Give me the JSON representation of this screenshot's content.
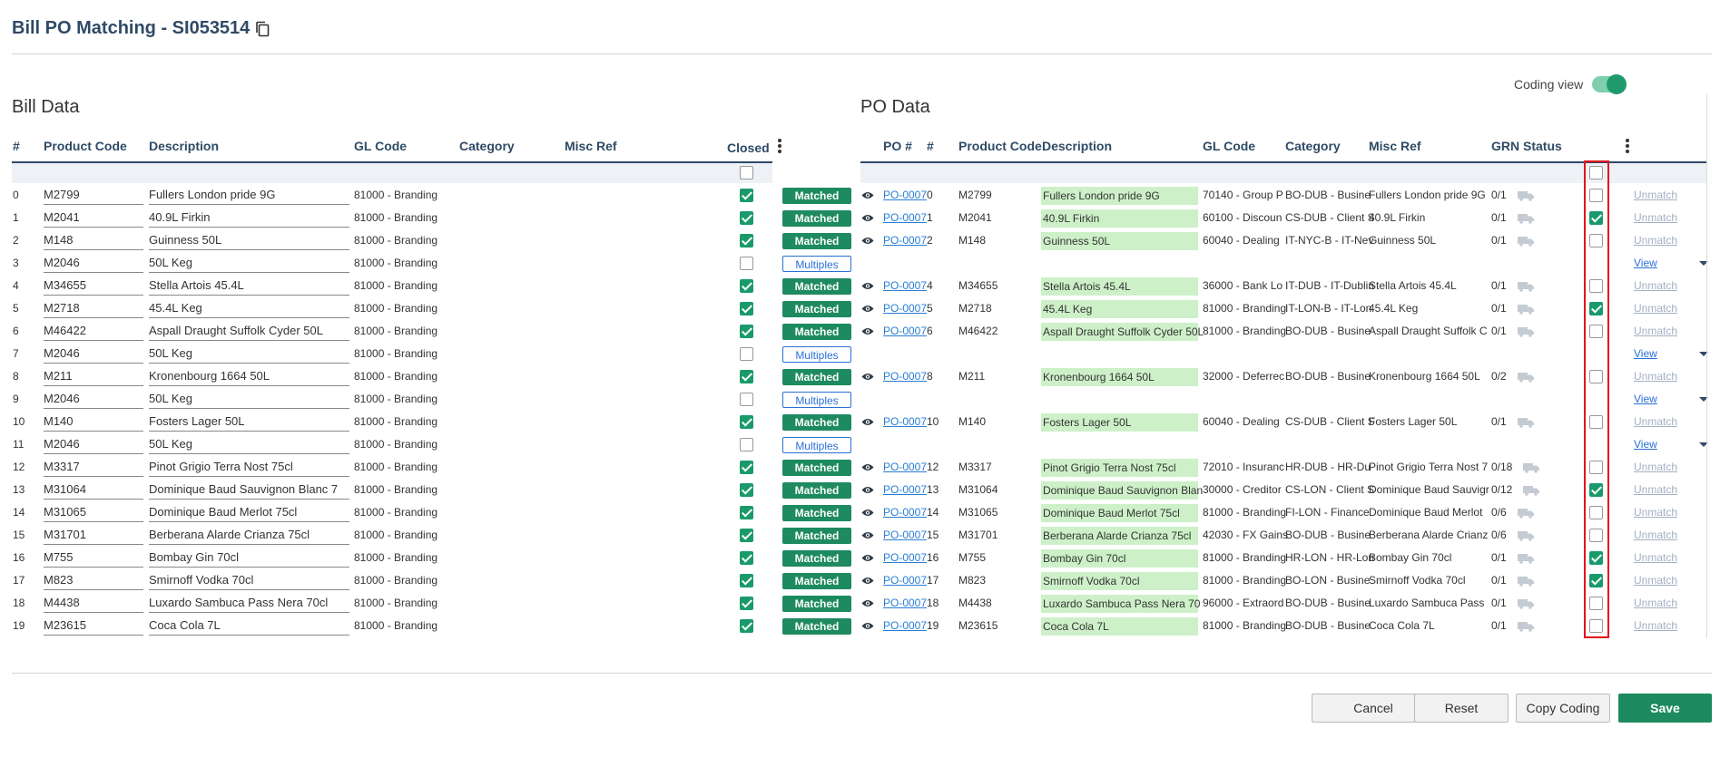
{
  "header": {
    "title": "Bill PO Matching - SI053514"
  },
  "coding_view": {
    "label": "Coding view",
    "enabled": true
  },
  "bill": {
    "section_title": "Bill Data",
    "columns": [
      "#",
      "Product Code",
      "Description",
      "GL Code",
      "Category",
      "Misc Ref",
      "Closed"
    ],
    "rows": [
      {
        "n": "0",
        "code": "M2799",
        "desc": "Fullers London pride 9G",
        "gl": "81000 - Branding",
        "closed": true,
        "status": "Matched"
      },
      {
        "n": "1",
        "code": "M2041",
        "desc": "40.9L Firkin",
        "gl": "81000 - Branding",
        "closed": true,
        "status": "Matched"
      },
      {
        "n": "2",
        "code": "M148",
        "desc": "Guinness  50L",
        "gl": "81000 - Branding",
        "closed": true,
        "status": "Matched"
      },
      {
        "n": "3",
        "code": "M2046",
        "desc": "50L Keg",
        "gl": "81000 - Branding",
        "closed": false,
        "status": "Multiples"
      },
      {
        "n": "4",
        "code": "M34655",
        "desc": "Stella Artois  45.4L",
        "gl": "81000 - Branding",
        "closed": true,
        "status": "Matched"
      },
      {
        "n": "5",
        "code": "M2718",
        "desc": "45.4L Keg",
        "gl": "81000 - Branding",
        "closed": true,
        "status": "Matched"
      },
      {
        "n": "6",
        "code": "M46422",
        "desc": "Aspall Draught Suffolk Cyder 50L",
        "gl": "81000 - Branding",
        "closed": true,
        "status": "Matched"
      },
      {
        "n": "7",
        "code": "M2046",
        "desc": "50L Keg",
        "gl": "81000 - Branding",
        "closed": false,
        "status": "Multiples"
      },
      {
        "n": "8",
        "code": "M211",
        "desc": "Kronenbourg 1664  50L",
        "gl": "81000 - Branding",
        "closed": true,
        "status": "Matched"
      },
      {
        "n": "9",
        "code": "M2046",
        "desc": "50L Keg",
        "gl": "81000 - Branding",
        "closed": false,
        "status": "Multiples"
      },
      {
        "n": "10",
        "code": "M140",
        "desc": "Fosters Lager  50L",
        "gl": "81000 - Branding",
        "closed": true,
        "status": "Matched"
      },
      {
        "n": "11",
        "code": "M2046",
        "desc": "50L Keg",
        "gl": "81000 - Branding",
        "closed": false,
        "status": "Multiples"
      },
      {
        "n": "12",
        "code": "M3317",
        "desc": "Pinot Grigio Terra Nost  75cl",
        "gl": "81000 - Branding",
        "closed": true,
        "status": "Matched"
      },
      {
        "n": "13",
        "code": "M31064",
        "desc": "Dominique Baud Sauvignon Blanc  7",
        "gl": "81000 - Branding",
        "closed": true,
        "status": "Matched"
      },
      {
        "n": "14",
        "code": "M31065",
        "desc": "Dominique Baud Merlot  75cl",
        "gl": "81000 - Branding",
        "closed": true,
        "status": "Matched"
      },
      {
        "n": "15",
        "code": "M31701",
        "desc": "Berberana Alarde Crianza  75cl",
        "gl": "81000 - Branding",
        "closed": true,
        "status": "Matched"
      },
      {
        "n": "16",
        "code": "M755",
        "desc": "Bombay Gin  70cl",
        "gl": "81000 - Branding",
        "closed": true,
        "status": "Matched"
      },
      {
        "n": "17",
        "code": "M823",
        "desc": "Smirnoff Vodka  70cl",
        "gl": "81000 - Branding",
        "closed": true,
        "status": "Matched"
      },
      {
        "n": "18",
        "code": "M4438",
        "desc": "Luxardo Sambuca Pass Nera  70cl",
        "gl": "81000 - Branding",
        "closed": true,
        "status": "Matched"
      },
      {
        "n": "19",
        "code": "M23615",
        "desc": "Coca Cola  7L",
        "gl": "81000 - Branding",
        "closed": true,
        "status": "Matched"
      }
    ]
  },
  "po": {
    "section_title": "PO Data",
    "columns": [
      "PO #",
      "#",
      "Product Code",
      "Description",
      "GL Code",
      "Category",
      "Misc Ref",
      "GRN Status"
    ],
    "unmatch_label": "Unmatch",
    "view_label": "View",
    "rows": [
      {
        "row": 0,
        "po": "PO-0007",
        "n": "0",
        "code": "M2799",
        "desc": "Fullers London pride 9G",
        "gl": "70140 - Group P",
        "cat": "BO-DUB - Busine",
        "misc": "Fullers London pride 9G",
        "grn": "0/1",
        "checked": false
      },
      {
        "row": 1,
        "po": "PO-0007",
        "n": "1",
        "code": "M2041",
        "desc": "40.9L Firkin",
        "gl": "60100 - Discoun",
        "cat": "CS-DUB - Client S",
        "misc": "40.9L Firkin",
        "grn": "0/1",
        "checked": true
      },
      {
        "row": 2,
        "po": "PO-0007",
        "n": "2",
        "code": "M148",
        "desc": "Guinness 50L",
        "gl": "60040 - Dealing",
        "cat": "IT-NYC-B - IT-Nev",
        "misc": "Guinness 50L",
        "grn": "0/1",
        "checked": false
      },
      {
        "row": 3,
        "view": true
      },
      {
        "row": 4,
        "po": "PO-0007",
        "n": "4",
        "code": "M34655",
        "desc": "Stella Artois 45.4L",
        "gl": "36000 - Bank Lo",
        "cat": "IT-DUB - IT-Dublin",
        "misc": "Stella Artois 45.4L",
        "grn": "0/1",
        "checked": false
      },
      {
        "row": 5,
        "po": "PO-0007",
        "n": "5",
        "code": "M2718",
        "desc": "45.4L Keg",
        "gl": "81000 - Branding",
        "cat": "IT-LON-B - IT-Lon",
        "misc": "45.4L Keg",
        "grn": "0/1",
        "checked": true
      },
      {
        "row": 6,
        "po": "PO-0007",
        "n": "6",
        "code": "M46422",
        "desc": "Aspall Draught Suffolk Cyder 50L",
        "gl": "81000 - Branding",
        "cat": "BO-DUB - Busine",
        "misc": "Aspall Draught Suffolk C",
        "grn": "0/1",
        "checked": false
      },
      {
        "row": 7,
        "view": true
      },
      {
        "row": 8,
        "po": "PO-0007",
        "n": "8",
        "code": "M211",
        "desc": "Kronenbourg 1664 50L",
        "gl": "32000 - Deferrec",
        "cat": "BO-DUB - Busine",
        "misc": "Kronenbourg 1664 50L",
        "grn": "0/2",
        "checked": false
      },
      {
        "row": 9,
        "view": true
      },
      {
        "row": 10,
        "po": "PO-0007",
        "n": "10",
        "code": "M140",
        "desc": "Fosters Lager 50L",
        "gl": "60040 - Dealing",
        "cat": "CS-DUB - Client S",
        "misc": "Fosters Lager 50L",
        "grn": "0/1",
        "checked": false
      },
      {
        "row": 11,
        "view": true
      },
      {
        "row": 12,
        "po": "PO-0007",
        "n": "12",
        "code": "M3317",
        "desc": "Pinot Grigio Terra Nost 75cl",
        "gl": "72010 - Insuranc",
        "cat": "HR-DUB - HR-Du",
        "misc": "Pinot Grigio Terra Nost 7",
        "grn": "0/18",
        "checked": false
      },
      {
        "row": 13,
        "po": "PO-0007",
        "n": "13",
        "code": "M31064",
        "desc": "Dominique Baud Sauvignon Blan",
        "gl": "30000 - Creditor",
        "cat": "CS-LON - Client S",
        "misc": "Dominique Baud Sauvigr",
        "grn": "0/12",
        "checked": true
      },
      {
        "row": 14,
        "po": "PO-0007",
        "n": "14",
        "code": "M31065",
        "desc": "Dominique Baud Merlot 75cl",
        "gl": "81000 - Branding",
        "cat": "FI-LON - Finance",
        "misc": "Dominique Baud Merlot",
        "grn": "0/6",
        "checked": false
      },
      {
        "row": 15,
        "po": "PO-0007",
        "n": "15",
        "code": "M31701",
        "desc": "Berberana Alarde Crianza 75cl",
        "gl": "42030 - FX Gains",
        "cat": "BO-DUB - Busine",
        "misc": "Berberana Alarde Crianz",
        "grn": "0/6",
        "checked": false
      },
      {
        "row": 16,
        "po": "PO-0007",
        "n": "16",
        "code": "M755",
        "desc": "Bombay Gin 70cl",
        "gl": "81000 - Branding",
        "cat": "HR-LON - HR-Lon",
        "misc": "Bombay Gin 70cl",
        "grn": "0/1",
        "checked": true
      },
      {
        "row": 17,
        "po": "PO-0007",
        "n": "17",
        "code": "M823",
        "desc": "Smirnoff Vodka 70cl",
        "gl": "81000 - Branding",
        "cat": "BO-LON - Busine",
        "misc": "Smirnoff Vodka 70cl",
        "grn": "0/1",
        "checked": true
      },
      {
        "row": 18,
        "po": "PO-0007",
        "n": "18",
        "code": "M4438",
        "desc": "Luxardo Sambuca Pass Nera 70",
        "gl": "96000 - Extraord",
        "cat": "BO-DUB - Busine",
        "misc": "Luxardo Sambuca Pass",
        "grn": "0/1",
        "checked": false
      },
      {
        "row": 19,
        "po": "PO-0007",
        "n": "19",
        "code": "M23615",
        "desc": "Coca Cola 7L",
        "gl": "81000 - Branding",
        "cat": "BO-DUB - Busine",
        "misc": "Coca Cola 7L",
        "grn": "0/1",
        "checked": false
      }
    ]
  },
  "buttons": {
    "cancel": "Cancel",
    "reset": "Reset",
    "copy_coding": "Copy Coding",
    "save": "Save"
  },
  "colors": {
    "accent": "#1d8a5f",
    "heading": "#2f4a66",
    "link": "#2a7dd6",
    "highlight": "#e3121b",
    "po_description_bg": "#cdf0c8"
  }
}
